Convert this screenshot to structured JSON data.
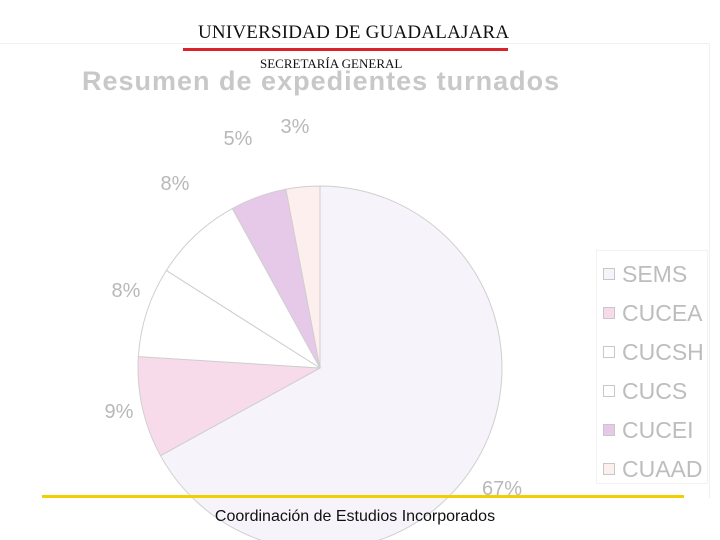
{
  "header": {
    "university": "UNIVERSIDAD DE GUADALAJARA",
    "secretariat": "SECRETARÍA GENERAL"
  },
  "footer": {
    "text": "Coordinación de Estudios Incorporados"
  },
  "chart_data": {
    "type": "pie",
    "title": "Resumen de expedientes turnados",
    "slices": [
      {
        "label": "SEMS",
        "value": 67,
        "display": "67%",
        "color": "#f6f3fb"
      },
      {
        "label": "CUCEA",
        "value": 9,
        "display": "9%",
        "color": "#f8dbea"
      },
      {
        "label": "CUCSH",
        "value": 8,
        "display": "8%",
        "color": "#ffffff"
      },
      {
        "label": "CUCS",
        "value": 8,
        "display": "8%",
        "color": "#ffffff"
      },
      {
        "label": "CUCEI",
        "value": 5,
        "display": "5%",
        "color": "#e6c8e9"
      },
      {
        "label": "CUAAD",
        "value": 3,
        "display": "3%",
        "color": "#fcefed"
      }
    ],
    "legend_position": "right"
  }
}
